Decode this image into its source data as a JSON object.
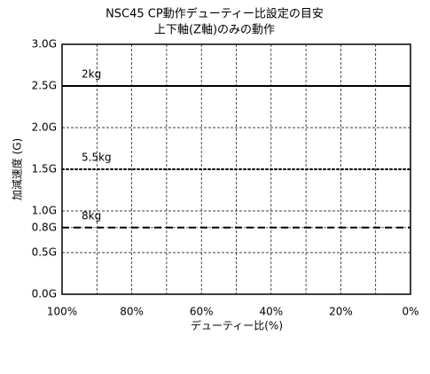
{
  "chart_data": {
    "type": "line",
    "title": "NSC45 CP動作デューティー比設定の目安",
    "subtitle": "上下軸(Z軸)のみの動作",
    "x_label": "デューティー比(%)",
    "y_label": "加減速度 (G)",
    "x": [
      100,
      0
    ],
    "series": [
      {
        "name": "2kg",
        "color": "#000000",
        "dash": "solid",
        "values": [
          2.5,
          2.5
        ]
      },
      {
        "name": "5.5kg",
        "color": "#000000",
        "dash": "dotted",
        "values": [
          1.5,
          1.5
        ]
      },
      {
        "name": "8kg",
        "color": "#000000",
        "dash": "dashed",
        "values": [
          0.8,
          0.8
        ]
      }
    ],
    "xlim": [
      100,
      0
    ],
    "ylim": [
      0,
      3
    ],
    "xticks": [
      {
        "value": 100,
        "label": "100%"
      },
      {
        "value": 80,
        "label": "80%"
      },
      {
        "value": 60,
        "label": "60%"
      },
      {
        "value": 40,
        "label": "40%"
      },
      {
        "value": 20,
        "label": "20%"
      },
      {
        "value": 0,
        "label": "0%"
      }
    ],
    "x_minor_grid": [
      90,
      70,
      50,
      30,
      10
    ],
    "yticks": [
      {
        "value": 0,
        "label": "0.0G"
      },
      {
        "value": 0.5,
        "label": "0.5G"
      },
      {
        "value": 0.8,
        "label": "0.8G"
      },
      {
        "value": 1,
        "label": "1.0G"
      },
      {
        "value": 1.5,
        "label": "1.5G"
      },
      {
        "value": 2,
        "label": "2.0G"
      },
      {
        "value": 2.5,
        "label": "2.5G"
      },
      {
        "value": 3,
        "label": "3.0G"
      }
    ],
    "grid": true
  }
}
